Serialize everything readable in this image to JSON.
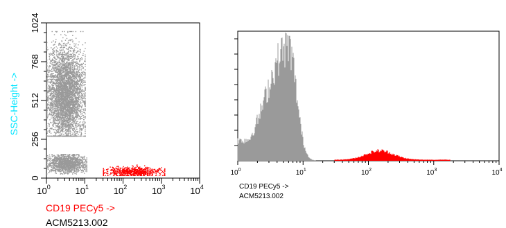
{
  "chart_data": [
    {
      "type": "scatter",
      "x_scale": "log",
      "xlim": [
        1,
        10000
      ],
      "ylim": [
        0,
        1024
      ],
      "xlabel": "CD19 PECy5 ->",
      "xlabel_color": "#ff0000",
      "ylabel": "SSC-Height ->",
      "ylabel_color": "#00e5ff",
      "sample_id": "ACM5213.002",
      "x_ticks": [
        1,
        10,
        100,
        1000,
        10000
      ],
      "x_tick_base": "10",
      "x_tick_exponents": [
        "0",
        "1",
        "2",
        "3",
        "4"
      ],
      "y_ticks": [
        0,
        256,
        512,
        768,
        1024
      ],
      "y_tick_labels": [
        "0",
        "256",
        "512",
        "768",
        "1024"
      ],
      "populations": [
        {
          "color": "#9a9a9a",
          "x_range": [
            1,
            10
          ],
          "y_range": [
            280,
            970
          ],
          "y_center": 560,
          "points": 4500
        },
        {
          "color": "#9a9a9a",
          "x_range": [
            1,
            11
          ],
          "y_range": [
            30,
            160
          ],
          "y_center": 100,
          "points": 1400
        },
        {
          "color": "#ff0000",
          "x_range": [
            30,
            1200
          ],
          "y_range": [
            20,
            90
          ],
          "y_center": 45,
          "points": 650
        }
      ]
    },
    {
      "type": "bar",
      "chart_kind": "histogram",
      "x_scale": "log",
      "xlim": [
        1,
        10000
      ],
      "xlabel": "CD19 PECy5 ->",
      "xlabel_color": "#000000",
      "sample_id": "ACM5213.002",
      "x_ticks": [
        1,
        10,
        100,
        1000,
        10000
      ],
      "x_tick_base": "10",
      "x_tick_exponents": [
        "0",
        "1",
        "2",
        "3",
        "4"
      ],
      "y_max_relative": 1.0,
      "series": [
        {
          "color": "#9a9a9a",
          "x_range": [
            1,
            30
          ],
          "peak_x": 6,
          "peak_height": 0.88
        },
        {
          "color": "#ff0000",
          "x_range": [
            30,
            1800
          ],
          "peak_x": 150,
          "peak_height": 0.07
        }
      ]
    }
  ]
}
